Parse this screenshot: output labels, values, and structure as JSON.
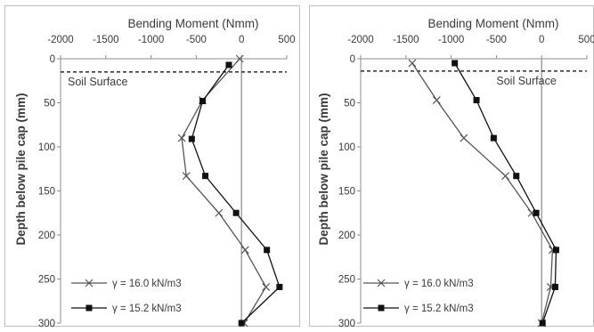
{
  "chart_data": [
    {
      "type": "line",
      "title": "Bending Moment (Nmm)",
      "xlabel": "Bending Moment (Nmm)",
      "ylabel": "Depth below pile cap (mm)",
      "xlim": [
        -2000,
        500
      ],
      "ylim": [
        0,
        300
      ],
      "x_axis_position": "top",
      "y_inverted": true,
      "x_ticks": [
        "-2000",
        "-1500",
        "-1000",
        "-500",
        "0",
        "500"
      ],
      "y_ticks": [
        "0",
        "50",
        "100",
        "150",
        "200",
        "250",
        "300"
      ],
      "grid": false,
      "annotation": {
        "text": "Soil Surface",
        "depth": 15
      },
      "legend_position": "bottom-left",
      "series": [
        {
          "name": "γ = 16.0 kN/m3",
          "marker": "x",
          "color": "#555555",
          "points": [
            [
              -20,
              0
            ],
            [
              -430,
              47
            ],
            [
              -660,
              90
            ],
            [
              -610,
              133
            ],
            [
              -250,
              175
            ],
            [
              40,
              217
            ],
            [
              270,
              259
            ],
            [
              30,
              300
            ]
          ]
        },
        {
          "name": "γ = 15.2 kN/m3",
          "marker": "square",
          "color": "#111111",
          "points": [
            [
              -140,
              7
            ],
            [
              -430,
              48
            ],
            [
              -550,
              91
            ],
            [
              -400,
              133
            ],
            [
              -60,
              175
            ],
            [
              280,
              217
            ],
            [
              420,
              259
            ],
            [
              0,
              300
            ]
          ]
        }
      ]
    },
    {
      "type": "line",
      "title": "Bending Moment (Nmm)",
      "xlabel": "Bending Moment (Nmm)",
      "ylabel": "Depth below pile cap (mm)",
      "xlim": [
        -2000,
        500
      ],
      "ylim": [
        0,
        300
      ],
      "x_axis_position": "top",
      "y_inverted": true,
      "x_ticks": [
        "-2000",
        "-1500",
        "-1000",
        "-500",
        "0",
        "500"
      ],
      "y_ticks": [
        "0",
        "50",
        "100",
        "150",
        "200",
        "250",
        "300"
      ],
      "grid": false,
      "annotation": {
        "text": "Soil Surface",
        "depth": 14
      },
      "legend_position": "bottom-left",
      "series": [
        {
          "name": "γ = 16.0 kN/m3",
          "marker": "x",
          "color": "#555555",
          "points": [
            [
              -1430,
              5
            ],
            [
              -1160,
              47
            ],
            [
              -860,
              90
            ],
            [
              -400,
              133
            ],
            [
              -110,
              175
            ],
            [
              120,
              217
            ],
            [
              100,
              259
            ],
            [
              0,
              300
            ]
          ]
        },
        {
          "name": "γ = 15.2 kN/m3",
          "marker": "square",
          "color": "#111111",
          "points": [
            [
              -960,
              5
            ],
            [
              -720,
              47
            ],
            [
              -530,
              90
            ],
            [
              -280,
              133
            ],
            [
              -60,
              175
            ],
            [
              160,
              217
            ],
            [
              150,
              259
            ],
            [
              10,
              300
            ]
          ]
        }
      ]
    }
  ]
}
